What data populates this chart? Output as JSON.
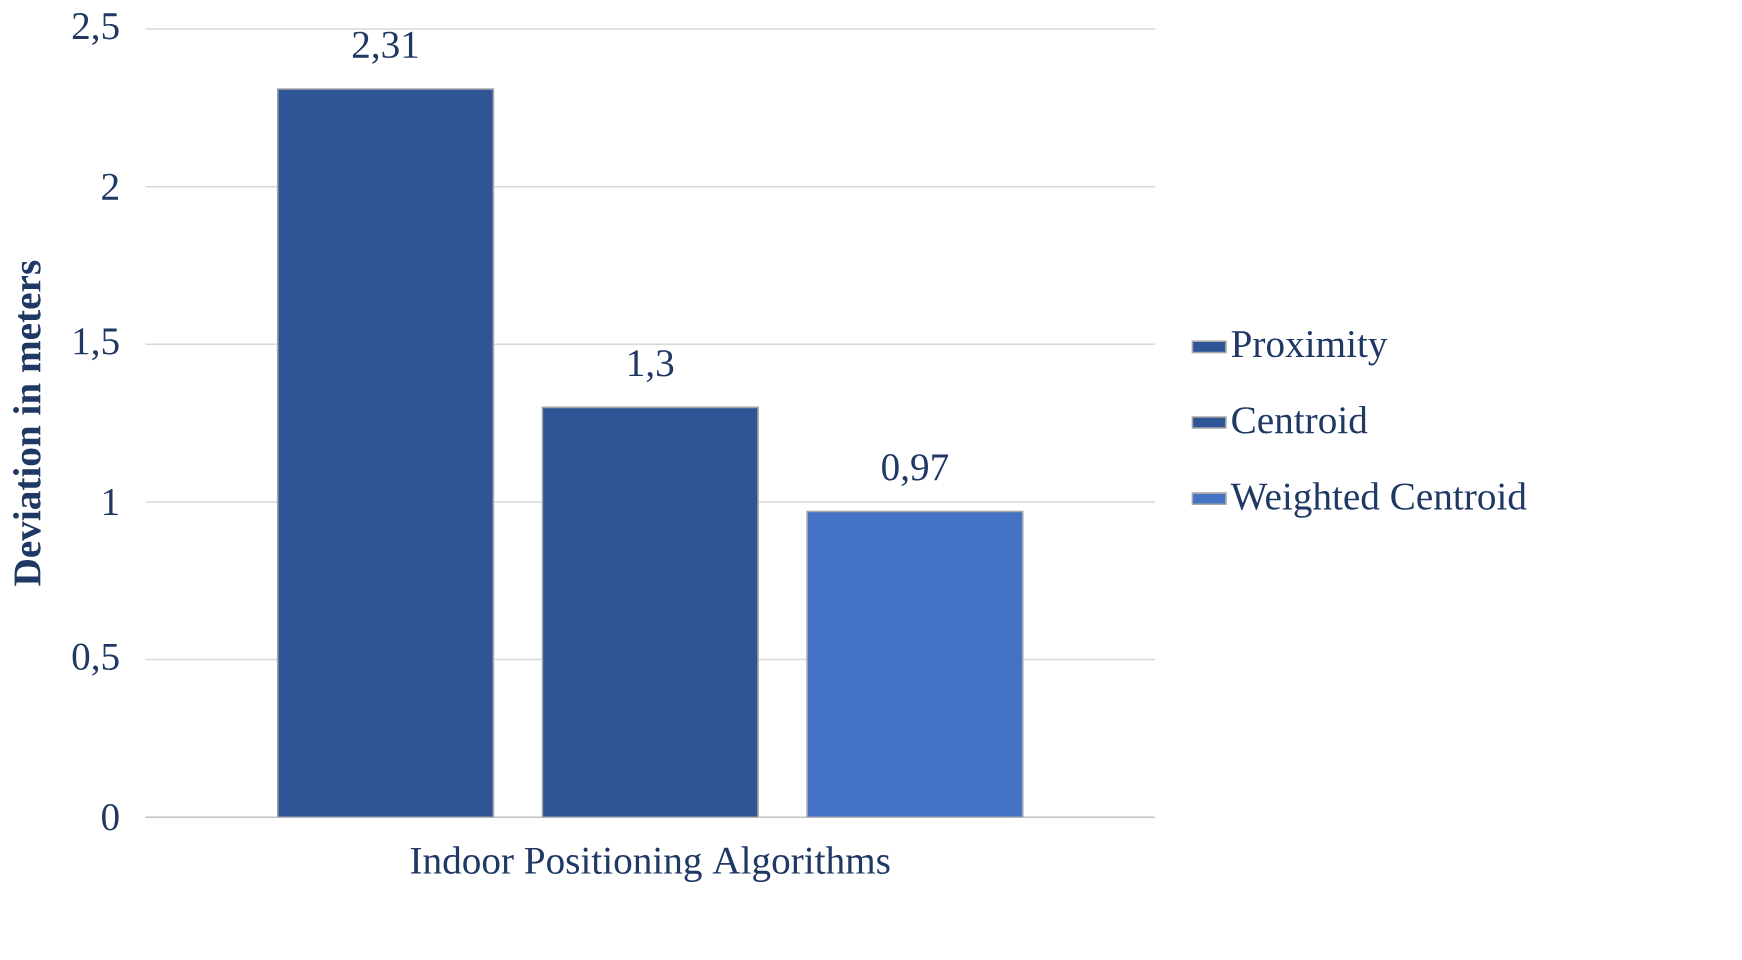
{
  "chart_data": {
    "type": "bar",
    "categories": [
      "Indoor Positioning Algorithms"
    ],
    "ylabel": "Deviation in meters",
    "series": [
      {
        "name": "Proximity",
        "color": "#2f5597",
        "values": [
          2.31
        ],
        "value_labels": [
          "2,31"
        ]
      },
      {
        "name": "Centroid",
        "color": "#2f5597",
        "values": [
          1.3
        ],
        "value_labels": [
          "1,3"
        ]
      },
      {
        "name": "Weighted Centroid",
        "color": "#4472c4",
        "values": [
          0.97
        ],
        "value_labels": [
          "0,97"
        ]
      }
    ],
    "ylim": [
      0,
      2.5
    ],
    "yticks": [
      0,
      {
        "value": 0.5,
        "label": "0,5"
      },
      1,
      {
        "value": 1.5,
        "label": "1,5"
      },
      2,
      {
        "value": 2.5,
        "label": "2,5"
      }
    ],
    "grid": "y",
    "legend": "right"
  }
}
